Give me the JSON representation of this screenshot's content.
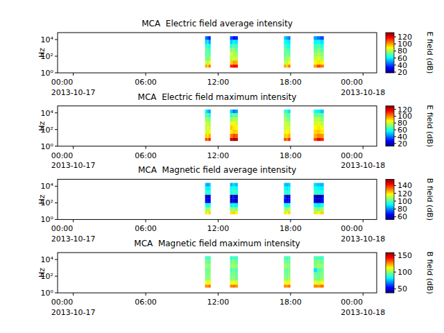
{
  "chart_data": [
    {
      "type": "heatmap",
      "title": "MCA  Electric field average intensity",
      "ylabel": "Hz",
      "log": "y",
      "xlim": [
        "2013-10-16T22:42",
        "2013-10-18T01:08"
      ],
      "xticks": [
        {
          "value": "2013-10-17T00:00",
          "label": "00:00\n2013-10-17"
        },
        {
          "value": "2013-10-17T06:00",
          "label": "06:00"
        },
        {
          "value": "2013-10-17T12:00",
          "label": "12:00"
        },
        {
          "value": "2013-10-17T18:00",
          "label": "18:00"
        },
        {
          "value": "2013-10-18T00:00",
          "label": "00:00\n2013-10-18"
        }
      ],
      "ylim": [
        1,
        68000
      ],
      "yticks": [
        {
          "value": 1,
          "label": "10⁰"
        },
        {
          "value": 100,
          "label": "10²"
        },
        {
          "value": 10000,
          "label": "10⁴"
        }
      ],
      "colorbar": {
        "label": "E field (dB)",
        "range": [
          18,
          132
        ],
        "ticks": [
          20,
          40,
          60,
          80,
          100,
          120
        ]
      },
      "cells": {
        "x_edges": [
          "2013-10-17T10:55",
          "2013-10-17T11:04",
          "2013-10-17T11:13",
          "2013-10-17T11:22",
          "2013-10-17T12:59",
          "2013-10-17T13:12",
          "2013-10-17T13:24",
          "2013-10-17T13:37",
          "2013-10-17T17:27",
          "2013-10-17T17:37",
          "2013-10-17T17:48",
          "2013-10-17T17:58",
          "2013-10-17T19:55",
          "2013-10-17T20:11",
          "2013-10-17T20:28",
          "2013-10-17T20:44"
        ],
        "y_edges": [
          4.5,
          10,
          31.6,
          100,
          316,
          1000,
          3162,
          10000,
          25000
        ],
        "z": [
          [
            100,
            85,
            75,
            70,
            72,
            65,
            55,
            45
          ],
          [
            95,
            80,
            72,
            75,
            70,
            68,
            60,
            40
          ],
          [
            105,
            88,
            78,
            72,
            68,
            62,
            50,
            35
          ],
          [
            null,
            null,
            null,
            null,
            null,
            null,
            null,
            null
          ],
          [
            115,
            95,
            80,
            85,
            75,
            65,
            55,
            40
          ],
          [
            120,
            100,
            85,
            80,
            78,
            70,
            60,
            30
          ],
          [
            118,
            98,
            82,
            78,
            72,
            68,
            58,
            35
          ],
          [
            null,
            null,
            null,
            null,
            null,
            null,
            null,
            null
          ],
          [
            100,
            85,
            75,
            70,
            72,
            68,
            62,
            55
          ],
          [
            95,
            82,
            78,
            75,
            70,
            65,
            60,
            50
          ],
          [
            105,
            88,
            80,
            72,
            68,
            62,
            58,
            45
          ],
          [
            null,
            null,
            null,
            null,
            null,
            null,
            null,
            null
          ],
          [
            100,
            88,
            82,
            78,
            72,
            68,
            60,
            50
          ],
          [
            110,
            92,
            85,
            80,
            75,
            70,
            62,
            45
          ],
          [
            105,
            90,
            80,
            76,
            70,
            65,
            58,
            40
          ]
        ]
      }
    },
    {
      "type": "heatmap",
      "title": "MCA  Electric field maximum intensity",
      "ylabel": "Hz",
      "log": "y",
      "xlim": [
        "2013-10-16T22:42",
        "2013-10-18T01:08"
      ],
      "xticks": [
        {
          "value": "2013-10-17T00:00",
          "label": "00:00\n2013-10-17"
        },
        {
          "value": "2013-10-17T06:00",
          "label": "06:00"
        },
        {
          "value": "2013-10-17T12:00",
          "label": "12:00"
        },
        {
          "value": "2013-10-17T18:00",
          "label": "18:00"
        },
        {
          "value": "2013-10-18T00:00",
          "label": "00:00\n2013-10-18"
        }
      ],
      "ylim": [
        1,
        68000
      ],
      "yticks": [
        {
          "value": 1,
          "label": "10⁰"
        },
        {
          "value": 100,
          "label": "10²"
        },
        {
          "value": 10000,
          "label": "10⁴"
        }
      ],
      "colorbar": {
        "label": "E field (dB)",
        "range": [
          12,
          130
        ],
        "ticks": [
          20,
          40,
          60,
          80,
          100,
          120
        ]
      },
      "cells": {
        "x_edges": [
          "2013-10-17T10:55",
          "2013-10-17T11:04",
          "2013-10-17T11:13",
          "2013-10-17T11:22",
          "2013-10-17T12:59",
          "2013-10-17T13:12",
          "2013-10-17T13:24",
          "2013-10-17T13:37",
          "2013-10-17T17:27",
          "2013-10-17T17:37",
          "2013-10-17T17:48",
          "2013-10-17T17:58",
          "2013-10-17T19:55",
          "2013-10-17T20:11",
          "2013-10-17T20:28",
          "2013-10-17T20:44"
        ],
        "y_edges": [
          4.5,
          10,
          31.6,
          100,
          316,
          1000,
          3162,
          10000,
          25000
        ],
        "z": [
          [
            108,
            92,
            82,
            78,
            80,
            72,
            62,
            55
          ],
          [
            102,
            88,
            80,
            82,
            78,
            76,
            68,
            50
          ],
          [
            112,
            95,
            85,
            80,
            76,
            70,
            58,
            45
          ],
          [
            null,
            null,
            null,
            null,
            null,
            null,
            null,
            null
          ],
          [
            122,
            102,
            88,
            92,
            82,
            72,
            62,
            50
          ],
          [
            126,
            108,
            92,
            88,
            85,
            78,
            68,
            40
          ],
          [
            124,
            105,
            90,
            85,
            80,
            76,
            66,
            45
          ],
          [
            null,
            null,
            null,
            null,
            null,
            null,
            null,
            null
          ],
          [
            108,
            92,
            82,
            78,
            80,
            76,
            70,
            62
          ],
          [
            102,
            90,
            86,
            82,
            78,
            72,
            68,
            58
          ],
          [
            112,
            95,
            88,
            80,
            76,
            70,
            66,
            52
          ],
          [
            null,
            null,
            null,
            null,
            null,
            null,
            null,
            null
          ],
          [
            108,
            95,
            90,
            86,
            80,
            76,
            68,
            58
          ],
          [
            118,
            100,
            92,
            88,
            82,
            78,
            70,
            55
          ],
          [
            112,
            98,
            88,
            84,
            78,
            72,
            66,
            50
          ]
        ]
      }
    },
    {
      "type": "heatmap",
      "title": "MCA  Magnetic field average intensity",
      "ylabel": "Hz",
      "log": "y",
      "xlim": [
        "2013-10-16T22:42",
        "2013-10-18T01:08"
      ],
      "xticks": [
        {
          "value": "2013-10-17T00:00",
          "label": "00:00\n2013-10-17"
        },
        {
          "value": "2013-10-17T06:00",
          "label": "06:00"
        },
        {
          "value": "2013-10-17T12:00",
          "label": "12:00"
        },
        {
          "value": "2013-10-17T18:00",
          "label": "18:00"
        },
        {
          "value": "2013-10-18T00:00",
          "label": "00:00\n2013-10-18"
        }
      ],
      "ylim": [
        1,
        68000
      ],
      "yticks": [
        {
          "value": 1,
          "label": "10⁰"
        },
        {
          "value": 100,
          "label": "10²"
        },
        {
          "value": 10000,
          "label": "10⁴"
        }
      ],
      "colorbar": {
        "label": "B field (dB)",
        "range": [
          53,
          156
        ],
        "ticks": [
          60,
          80,
          100,
          120,
          140
        ]
      },
      "cells": {
        "x_edges": [
          "2013-10-17T10:55",
          "2013-10-17T11:04",
          "2013-10-17T11:13",
          "2013-10-17T11:22",
          "2013-10-17T12:59",
          "2013-10-17T13:12",
          "2013-10-17T13:24",
          "2013-10-17T13:37",
          "2013-10-17T17:27",
          "2013-10-17T17:37",
          "2013-10-17T17:48",
          "2013-10-17T17:58",
          "2013-10-17T19:55",
          "2013-10-17T20:11",
          "2013-10-17T20:28",
          "2013-10-17T20:44"
        ],
        "y_edges": [
          4.5,
          10,
          31.6,
          100,
          316,
          1000,
          3162,
          10000,
          25000
        ],
        "z": [
          [
            120,
            108,
            95,
            65,
            62,
            95,
            92,
            85
          ],
          [
            118,
            105,
            92,
            62,
            60,
            98,
            90,
            82
          ],
          [
            122,
            110,
            96,
            66,
            64,
            96,
            92,
            86
          ],
          [
            null,
            null,
            null,
            null,
            null,
            null,
            null,
            null
          ],
          [
            120,
            106,
            90,
            60,
            58,
            95,
            92,
            84
          ],
          [
            122,
            108,
            92,
            62,
            68,
            98,
            95,
            88
          ],
          [
            118,
            104,
            90,
            60,
            62,
            96,
            92,
            85
          ],
          [
            null,
            null,
            null,
            null,
            null,
            null,
            null,
            null
          ],
          [
            120,
            108,
            94,
            64,
            70,
            98,
            92,
            86
          ],
          [
            118,
            106,
            92,
            62,
            60,
            96,
            90,
            84
          ],
          [
            122,
            110,
            95,
            65,
            64,
            97,
            92,
            86
          ],
          [
            null,
            null,
            null,
            null,
            null,
            null,
            null,
            null
          ],
          [
            120,
            106,
            92,
            62,
            60,
            98,
            94,
            88
          ],
          [
            118,
            104,
            90,
            60,
            58,
            96,
            92,
            86
          ],
          [
            122,
            108,
            94,
            64,
            62,
            95,
            90,
            84
          ]
        ]
      }
    },
    {
      "type": "heatmap",
      "title": "MCA  Magnetic field maximum intensity",
      "ylabel": "Hz",
      "log": "y",
      "xlim": [
        "2013-10-16T22:42",
        "2013-10-18T01:08"
      ],
      "xticks": [
        {
          "value": "2013-10-17T00:00",
          "label": "00:00\n2013-10-17"
        },
        {
          "value": "2013-10-17T06:00",
          "label": "06:00"
        },
        {
          "value": "2013-10-17T12:00",
          "label": "12:00"
        },
        {
          "value": "2013-10-17T18:00",
          "label": "18:00"
        },
        {
          "value": "2013-10-18T00:00",
          "label": "00:00\n2013-10-18"
        }
      ],
      "ylim": [
        1,
        68000
      ],
      "yticks": [
        {
          "value": 1,
          "label": "10⁰"
        },
        {
          "value": 100,
          "label": "10²"
        },
        {
          "value": 10000,
          "label": "10⁴"
        }
      ],
      "colorbar": {
        "label": "B field (dB)",
        "range": [
          38,
          158
        ],
        "ticks": [
          50,
          100,
          150
        ]
      },
      "cells": {
        "x_edges": [
          "2013-10-17T10:55",
          "2013-10-17T11:04",
          "2013-10-17T11:13",
          "2013-10-17T11:22",
          "2013-10-17T12:59",
          "2013-10-17T13:12",
          "2013-10-17T13:24",
          "2013-10-17T13:37",
          "2013-10-17T17:27",
          "2013-10-17T17:37",
          "2013-10-17T17:48",
          "2013-10-17T17:58",
          "2013-10-17T19:55",
          "2013-10-17T20:11",
          "2013-10-17T20:28",
          "2013-10-17T20:44"
        ],
        "y_edges": [
          4.5,
          10,
          31.6,
          100,
          316,
          1000,
          3162,
          10000,
          25000
        ],
        "z": [
          [
            128,
            112,
            100,
            98,
            96,
            100,
            95,
            92
          ],
          [
            126,
            110,
            98,
            96,
            94,
            102,
            96,
            90
          ],
          [
            130,
            114,
            102,
            100,
            98,
            100,
            94,
            92
          ],
          [
            null,
            null,
            null,
            null,
            null,
            null,
            null,
            null
          ],
          [
            128,
            110,
            98,
            96,
            92,
            100,
            96,
            88
          ],
          [
            130,
            112,
            100,
            98,
            95,
            102,
            98,
            92
          ],
          [
            126,
            108,
            96,
            95,
            92,
            100,
            94,
            90
          ],
          [
            null,
            null,
            null,
            null,
            null,
            null,
            null,
            null
          ],
          [
            128,
            112,
            100,
            98,
            96,
            102,
            96,
            92
          ],
          [
            126,
            110,
            98,
            96,
            94,
            100,
            94,
            90
          ],
          [
            130,
            114,
            102,
            99,
            97,
            100,
            95,
            92
          ],
          [
            null,
            null,
            null,
            null,
            null,
            null,
            null,
            null
          ],
          [
            128,
            110,
            98,
            96,
            80,
            100,
            96,
            92
          ],
          [
            126,
            108,
            96,
            95,
            92,
            102,
            98,
            92
          ],
          [
            130,
            112,
            100,
            98,
            95,
            100,
            95,
            90
          ]
        ]
      }
    }
  ]
}
